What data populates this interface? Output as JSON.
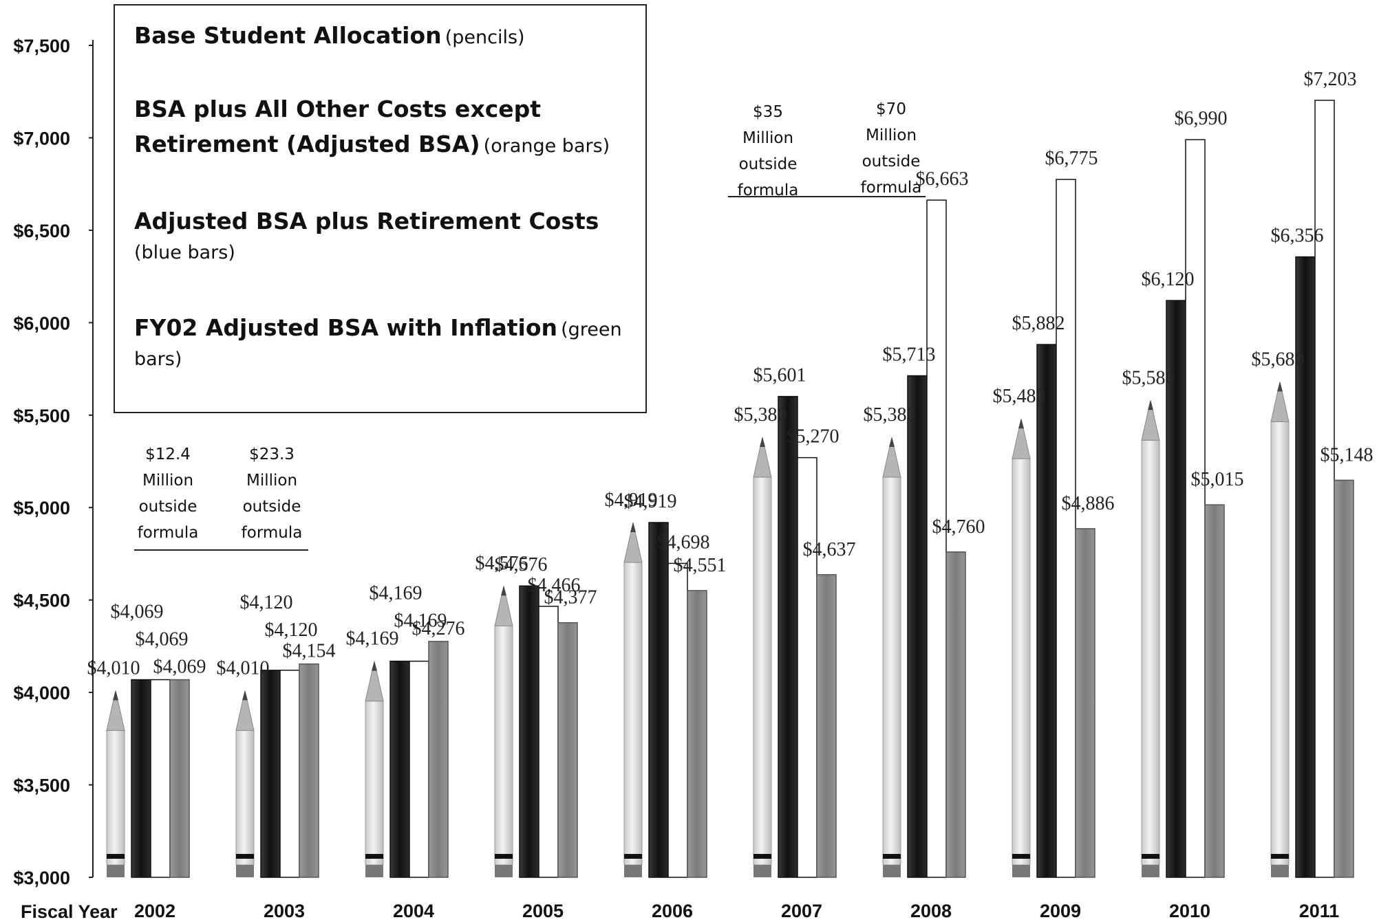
{
  "chart_data": {
    "type": "bar",
    "y_axis": {
      "min": 3000,
      "max": 7500,
      "ticks": [
        "$3,000",
        "$3,500",
        "$4,000",
        "$4,500",
        "$5,000",
        "$5,500",
        "$6,000",
        "$6,500",
        "$7,000",
        "$7,500"
      ]
    },
    "x_axis_title": "Fiscal Year",
    "categories": [
      "2002",
      "2003",
      "2004",
      "2005",
      "2006",
      "2007",
      "2008",
      "2009",
      "2010",
      "2011"
    ],
    "series": [
      {
        "name": "Base Student Allocation",
        "marker": "pencil",
        "values": [
          4010,
          4010,
          4169,
          4576,
          4919,
          5380,
          5380,
          5480,
          5580,
          5680
        ],
        "labels": [
          "$4,010",
          "$4,010",
          "$4,169",
          "$4,576",
          "$4,919",
          "$5,380",
          "$5,380",
          "$5,480",
          "$5,580",
          "$5,680"
        ]
      },
      {
        "name": "BSA plus All Other Costs except Retirement (Adjusted BSA)",
        "color": "#1c1c1c",
        "values": [
          4069,
          4120,
          4169,
          4576,
          4919,
          5601,
          5713,
          5882,
          6120,
          6356
        ],
        "labels": [
          "$4,069",
          "$4,120",
          "$4,169",
          "$4,576",
          "$4,919",
          "$5,601",
          "$5,713",
          "$5,882",
          "$6,120",
          "$6,356"
        ]
      },
      {
        "name": "Adjusted BSA plus Retirement Costs",
        "color": "#ffffff",
        "values": [
          4069,
          4120,
          4169,
          4466,
          4698,
          5270,
          6663,
          6775,
          6990,
          7203
        ],
        "labels": [
          "$4,069",
          "$4,120",
          "$4,169",
          "$4,466",
          "$4,698",
          "$5,270",
          "$6,663",
          "$6,775",
          "$6,990",
          "$7,203"
        ]
      },
      {
        "name": "FY02 Adjusted BSA with Inflation",
        "color": "#8a8a8a",
        "values": [
          4069,
          4154,
          4276,
          4377,
          4551,
          4637,
          4760,
          4886,
          5015,
          5148
        ],
        "labels": [
          "$4,069",
          "$4,154",
          "$4,276",
          "$4,377",
          "$4,551",
          "$4,637",
          "$4,760",
          "$4,886",
          "$5,015",
          "$5,148"
        ]
      }
    ],
    "legend": {
      "position": "top-left",
      "items": [
        {
          "main": "Base Student Allocation",
          "sub": "(pencils)"
        },
        {
          "main": "BSA plus All Other Costs except Retirement (Adjusted BSA)",
          "sub": "(orange bars)"
        },
        {
          "main": "Adjusted BSA plus Retirement Costs",
          "sub": "(blue bars)"
        },
        {
          "main": "FY02 Adjusted BSA with Inflation",
          "sub": "(green bars)"
        }
      ]
    },
    "annotations": [
      {
        "category": "2002",
        "lines": [
          "$12.4",
          "Million",
          "outside",
          "formula"
        ]
      },
      {
        "category": "2003",
        "lines": [
          "$23.3",
          "Million",
          "outside",
          "formula"
        ]
      },
      {
        "category": "2007",
        "lines": [
          "$35",
          "Million",
          "outside",
          "formula"
        ]
      },
      {
        "category": "2008",
        "lines": [
          "$70",
          "Million",
          "outside",
          "formula"
        ]
      }
    ]
  }
}
